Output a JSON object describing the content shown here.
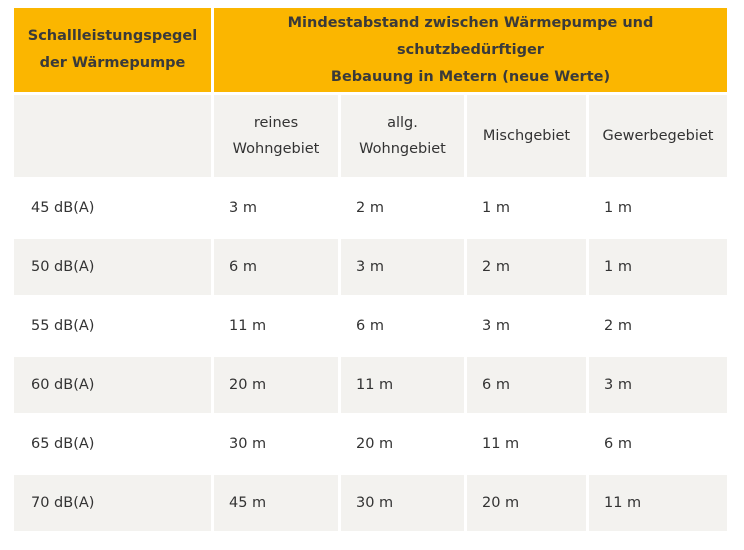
{
  "header": {
    "col1": "Schallleistungspegel\nder Wärmepumpe",
    "col2": "Mindestabstand zwischen Wärmepumpe und schutzbedürftiger\nBebauung in Metern (neue Werte)"
  },
  "subheader": {
    "col1": "",
    "cols": [
      "reines\nWohngebiet",
      "allg.\nWohngebiet",
      "Mischgebiet",
      "Gewerbegebiet"
    ]
  },
  "rows": [
    [
      "45 dB(A)",
      "3 m",
      "2 m",
      "1 m",
      "1 m"
    ],
    [
      "50 dB(A)",
      "6 m",
      "3 m",
      "2 m",
      "1 m"
    ],
    [
      "55 dB(A)",
      "11 m",
      "6 m",
      "3 m",
      "2 m"
    ],
    [
      "60 dB(A)",
      "20 m",
      "11 m",
      "6 m",
      "3 m"
    ],
    [
      "65 dB(A)",
      "30 m",
      "20 m",
      "11 m",
      "6 m"
    ],
    [
      "70 dB(A)",
      "45 m",
      "30 m",
      "20 m",
      "11 m"
    ]
  ],
  "colors": {
    "header_bg": "#fbb600",
    "stripe_bg": "#f3f2ef"
  }
}
